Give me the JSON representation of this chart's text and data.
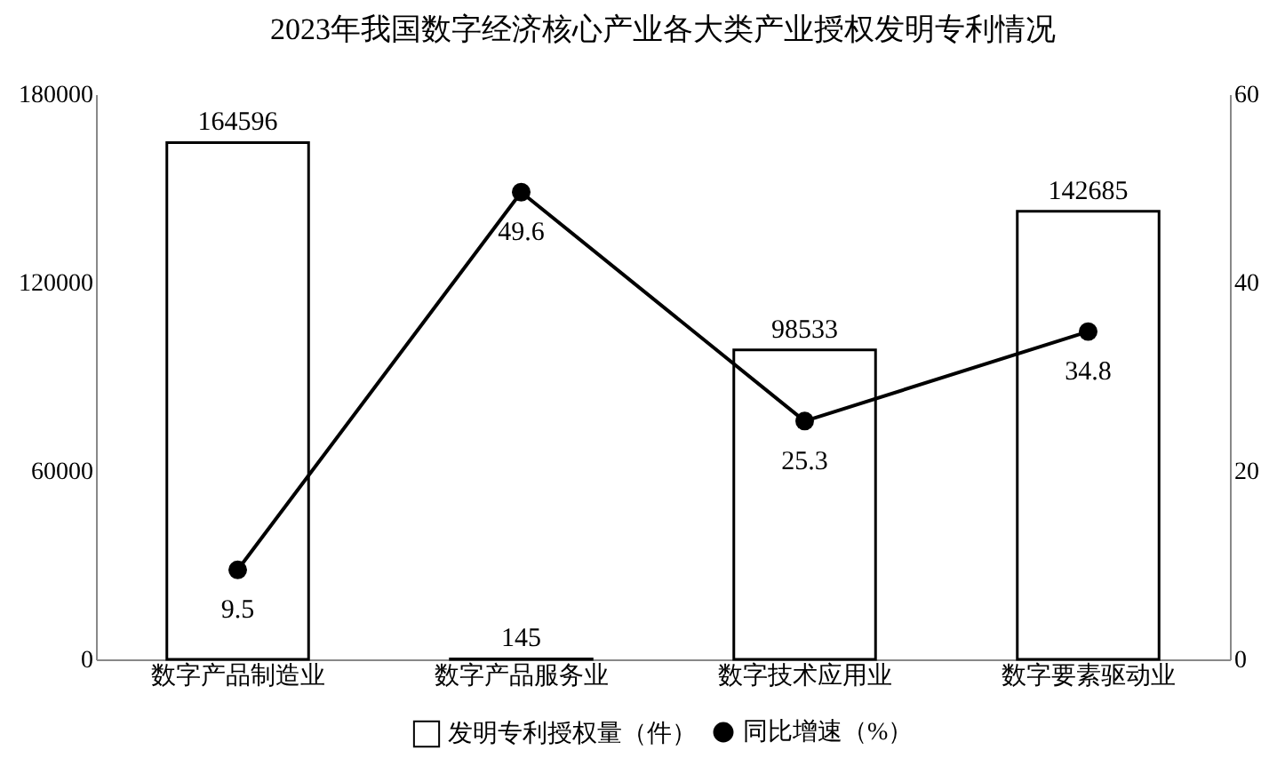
{
  "chart_data": {
    "type": "bar",
    "title": "2023年我国数字经济核心产业各大类产业授权发明专利情况",
    "categories": [
      "数字产品制造业",
      "数字产品服务业",
      "数字技术应用业",
      "数字要素驱动业"
    ],
    "series": [
      {
        "name": "发明专利授权量（件）",
        "color": "#ffffff",
        "values": [
          164596,
          145,
          98533,
          142685
        ]
      },
      {
        "name": "同比增速（%）",
        "type": "line",
        "axis": "y2",
        "color": "#000000",
        "values": [
          9.5,
          49.6,
          25.3,
          34.8
        ]
      }
    ],
    "ylim": [
      0,
      180000
    ],
    "yticks": [
      0,
      60000,
      120000,
      180000
    ],
    "y2lim": [
      0,
      60
    ],
    "y2ticks": [
      0,
      20,
      40,
      60
    ],
    "data_labels": true,
    "legend": "bottom",
    "marker": "circle"
  }
}
